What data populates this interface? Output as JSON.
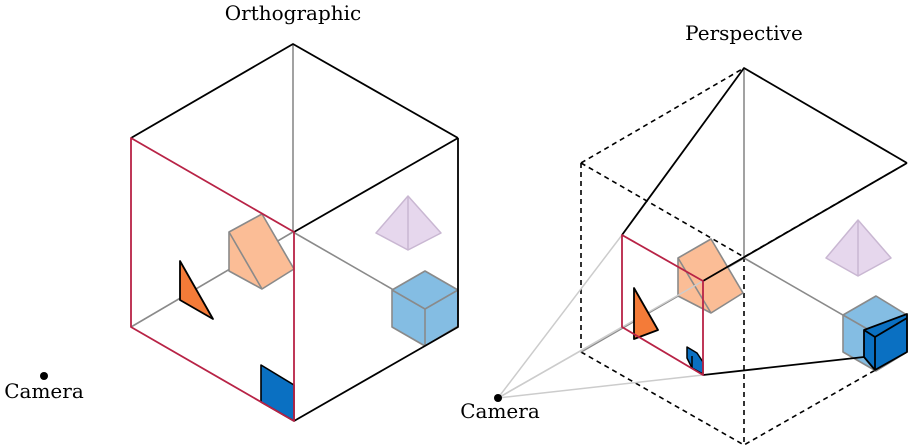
{
  "labels": {
    "left_title": "Orthographic",
    "right_title": "Perspective",
    "left_camera": "Camera",
    "right_camera": "Camera"
  },
  "colors": {
    "frame": "#b82346",
    "edge": "#000000",
    "hidden_edge": "#8a8a8a",
    "orange_solid": "#f47b38",
    "orange_light": "#fbbd96",
    "blue_solid": "#0a70c2",
    "blue_light": "#84bde3",
    "lilac": "#e6d7ed",
    "ray": "#cccccc"
  }
}
